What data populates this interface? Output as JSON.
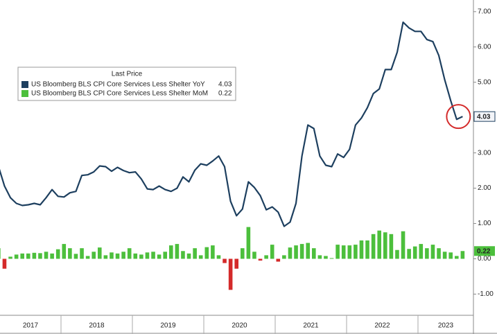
{
  "chart_data": {
    "type": "line-bar",
    "legend_title": "Last Price",
    "xticks": [
      2017,
      2018,
      2019,
      2020,
      2021,
      2022,
      2023
    ],
    "ylim": [
      -1.6,
      7.33
    ],
    "yticks": [
      {
        "value": 7,
        "label": "7.00"
      },
      {
        "value": 6,
        "label": "6.00"
      },
      {
        "value": 5,
        "label": "5.00"
      },
      {
        "value": 4,
        "label": "4.00"
      },
      {
        "value": 3,
        "label": "3.00"
      },
      {
        "value": 2,
        "label": "2.00"
      },
      {
        "value": 1,
        "label": "1.00"
      },
      {
        "value": 0,
        "label": "0.00"
      },
      {
        "value": -1,
        "label": "-1.00"
      }
    ],
    "series": [
      {
        "name": "US Bloomberg BLS CPI Core Services Less Shelter YoY",
        "kind": "line",
        "color": "#1d3f5f",
        "values": [
          2.61,
          2.06,
          1.73,
          1.57,
          1.51,
          1.53,
          1.57,
          1.53,
          1.73,
          1.96,
          1.77,
          1.75,
          1.87,
          1.91,
          2.36,
          2.38,
          2.46,
          2.63,
          2.61,
          2.48,
          2.59,
          2.5,
          2.44,
          2.46,
          2.26,
          1.98,
          1.96,
          2.06,
          1.96,
          1.91,
          2.0,
          2.32,
          2.18,
          2.51,
          2.69,
          2.65,
          2.77,
          2.91,
          2.61,
          1.63,
          1.22,
          1.41,
          2.18,
          2.02,
          1.79,
          1.39,
          1.47,
          1.32,
          0.92,
          1.04,
          1.57,
          2.91,
          3.79,
          3.69,
          2.91,
          2.65,
          2.61,
          2.97,
          2.87,
          3.1,
          3.79,
          3.99,
          4.28,
          4.68,
          4.81,
          5.36,
          5.36,
          5.85,
          6.7,
          6.54,
          6.44,
          6.44,
          6.21,
          6.15,
          5.76,
          5.07,
          4.48,
          3.95,
          4.03
        ]
      },
      {
        "name": "US Bloomberg BLS CPI Core Services Less Shelter MoM",
        "kind": "bar",
        "color": "#4cbf3c",
        "negative_color": "#d42a2a",
        "values": [
          0.3,
          -0.28,
          0.06,
          0.12,
          0.15,
          0.15,
          0.17,
          0.16,
          0.2,
          0.15,
          0.27,
          0.42,
          0.3,
          0.14,
          0.3,
          0.08,
          0.2,
          0.32,
          0.1,
          0.18,
          0.15,
          0.2,
          0.3,
          0.15,
          0.12,
          0.18,
          0.2,
          0.12,
          0.2,
          0.38,
          0.42,
          0.22,
          0.15,
          0.3,
          0.1,
          0.33,
          0.38,
          0.1,
          -0.12,
          -0.88,
          -0.28,
          0.3,
          0.9,
          0.2,
          -0.05,
          0.1,
          0.4,
          -0.08,
          0.1,
          0.32,
          0.38,
          0.42,
          0.45,
          0.3,
          0.1,
          0.08,
          0.02,
          0.4,
          0.38,
          0.38,
          0.4,
          0.52,
          0.52,
          0.7,
          0.8,
          0.75,
          0.7,
          0.25,
          0.78,
          0.28,
          0.35,
          0.42,
          0.3,
          0.4,
          0.3,
          0.2,
          0.18,
          0.08,
          0.22
        ]
      }
    ]
  }
}
